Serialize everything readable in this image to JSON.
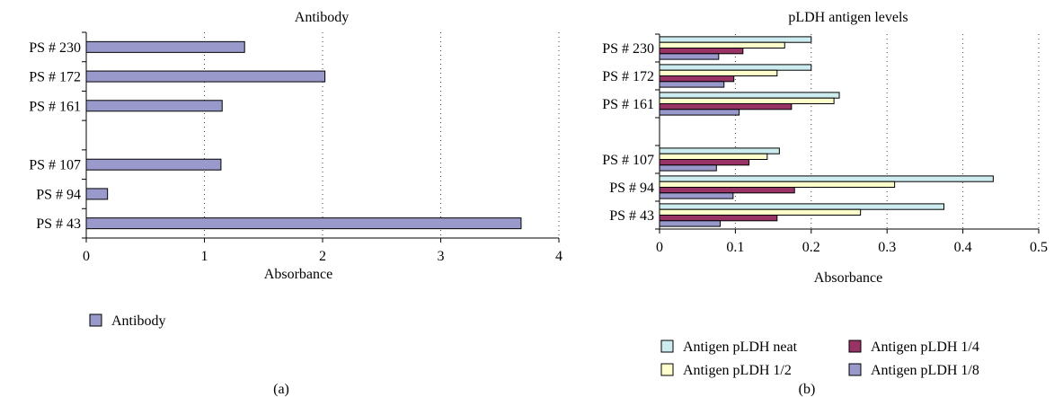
{
  "chart_data": [
    {
      "type": "bar",
      "orientation": "horizontal",
      "title": "Antibody",
      "xlabel": "Absorbance",
      "ylabel": "",
      "panel_label": "(a)",
      "xlim": [
        0,
        4
      ],
      "xticks": [
        0,
        1,
        2,
        3,
        4
      ],
      "grid": "vertical dotted",
      "legend_position": "bottom-left",
      "categories": [
        "PS # 230",
        "PS # 172",
        "PS # 161",
        "",
        "PS # 107",
        "PS # 94",
        "PS # 43"
      ],
      "series": [
        {
          "name": "Antibody",
          "color": "#9999cc",
          "values": [
            1.34,
            2.02,
            1.15,
            null,
            1.14,
            0.18,
            3.68
          ]
        }
      ]
    },
    {
      "type": "bar",
      "orientation": "horizontal",
      "title": "pLDH antigen levels",
      "xlabel": "Absorbance",
      "ylabel": "",
      "panel_label": "(b)",
      "xlim": [
        0,
        0.5
      ],
      "xticks": [
        0,
        0.1,
        0.2,
        0.3,
        0.4,
        0.5
      ],
      "grid": "vertical dotted",
      "legend_position": "bottom",
      "categories": [
        "PS # 230",
        "PS # 172",
        "PS # 161",
        "",
        "PS # 107",
        "PS # 94",
        "PS # 43"
      ],
      "series": [
        {
          "name": "Antigen pLDH neat",
          "color": "#ccecf0",
          "values": [
            0.2,
            0.2,
            0.237,
            null,
            0.158,
            0.44,
            0.375
          ]
        },
        {
          "name": "Antigen pLDH 1/2",
          "color": "#ffffcc",
          "values": [
            0.165,
            0.155,
            0.23,
            null,
            0.142,
            0.31,
            0.265
          ]
        },
        {
          "name": "Antigen pLDH 1/4",
          "color": "#993366",
          "values": [
            0.11,
            0.098,
            0.174,
            null,
            0.118,
            0.178,
            0.155
          ]
        },
        {
          "name": "Antigen pLDH 1/8",
          "color": "#9999cc",
          "values": [
            0.078,
            0.085,
            0.105,
            null,
            0.075,
            0.097,
            0.08
          ]
        }
      ]
    }
  ]
}
